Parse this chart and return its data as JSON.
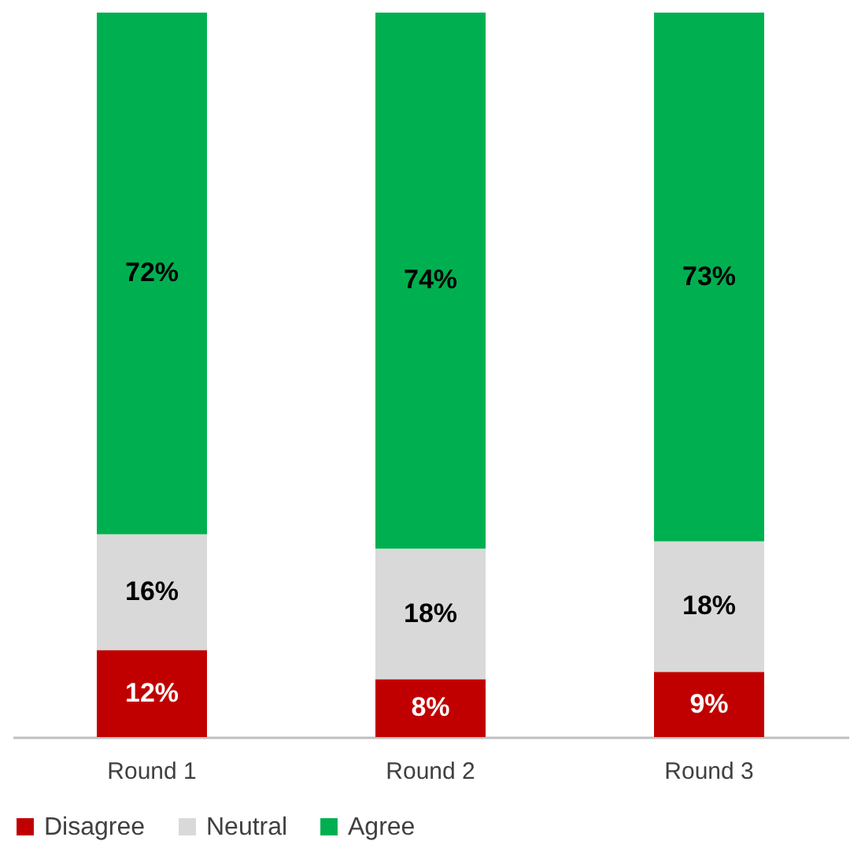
{
  "chart_data": {
    "type": "bar",
    "stacked": true,
    "categories": [
      "Round 1",
      "Round 2",
      "Round 3"
    ],
    "series": [
      {
        "name": "Disagree",
        "color": "#c00000",
        "values": [
          12,
          8,
          9
        ],
        "value_labels": [
          "12%",
          "8%",
          "9%"
        ]
      },
      {
        "name": "Neutral",
        "color": "#d9d9d9",
        "values": [
          16,
          18,
          18
        ],
        "value_labels": [
          "16%",
          "18%",
          "18%"
        ]
      },
      {
        "name": "Agree",
        "color": "#00b050",
        "values": [
          72,
          74,
          73
        ],
        "value_labels": [
          "72%",
          "74%",
          "73%"
        ]
      }
    ],
    "ylim": [
      0,
      100
    ],
    "tick_labels": "x",
    "grid": false,
    "legend": "bottom"
  }
}
